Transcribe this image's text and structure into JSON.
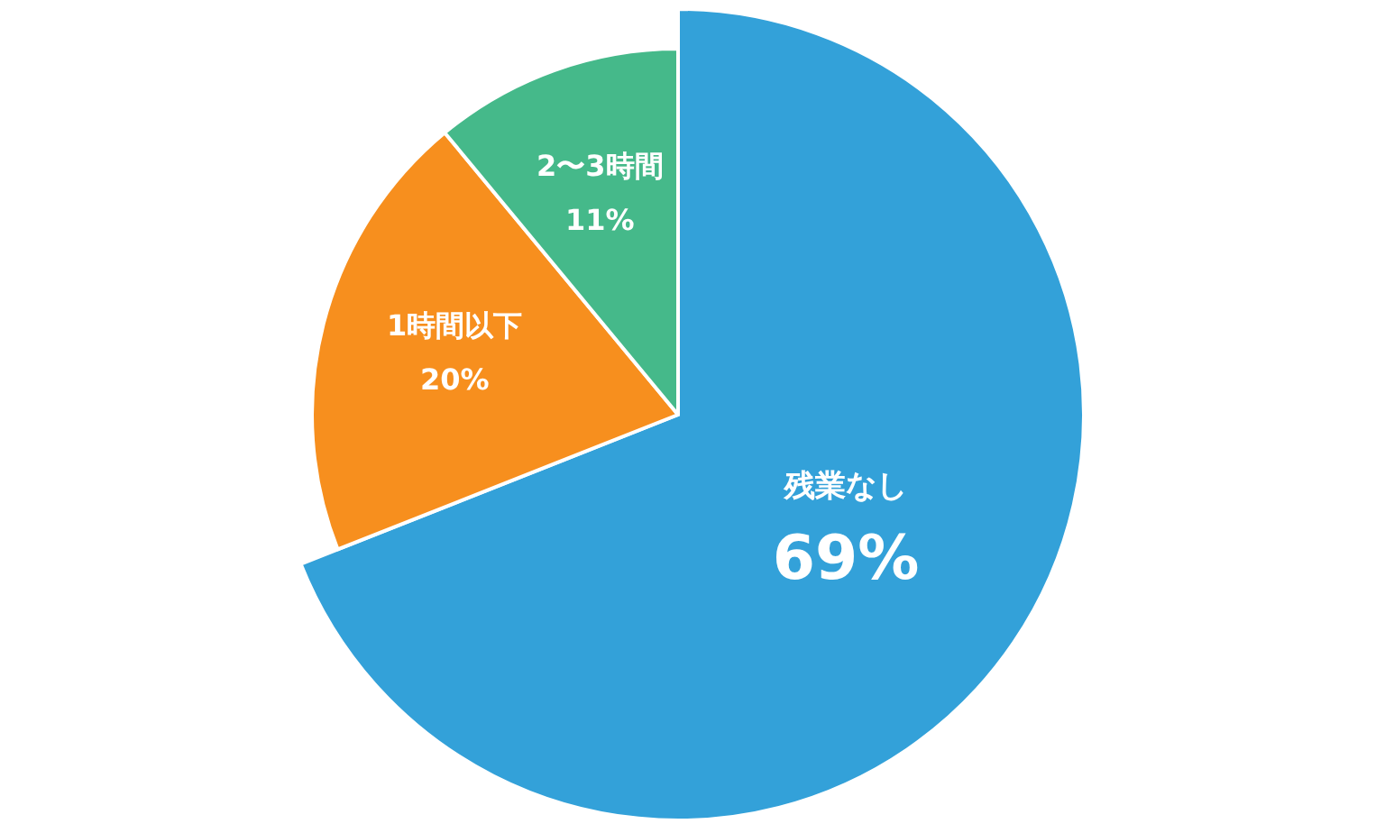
{
  "chart_data": {
    "type": "pie",
    "categories": [
      "残業なし",
      "1時間以下",
      "2〜3時間"
    ],
    "values": [
      69,
      20,
      11
    ],
    "value_labels": [
      "69%",
      "20%",
      "11%"
    ],
    "colors": [
      "#33a1d9",
      "#f78f1e",
      "#45b98a"
    ]
  }
}
